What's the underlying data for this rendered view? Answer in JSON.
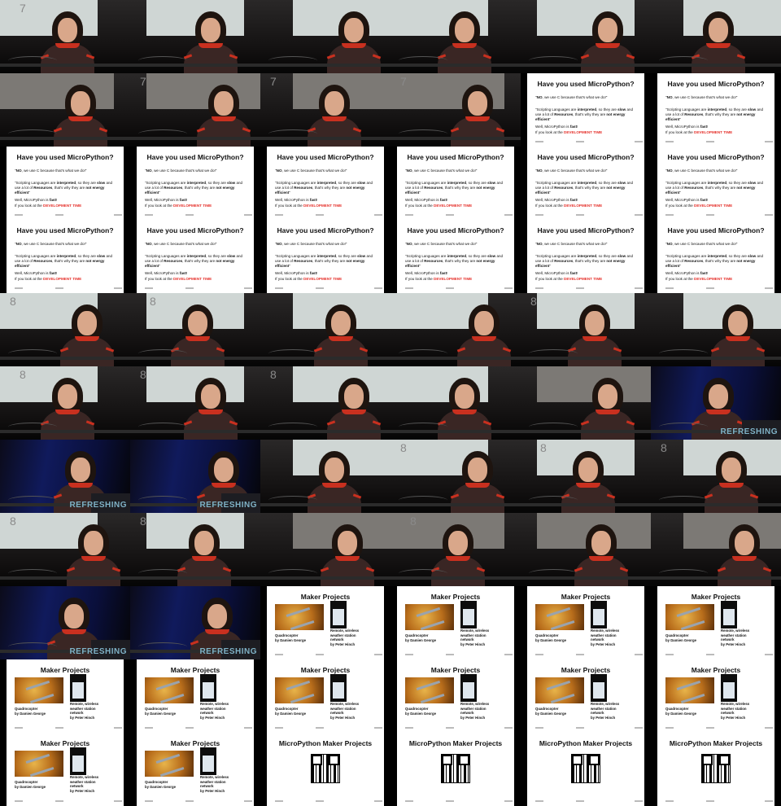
{
  "grid": {
    "columns": 6,
    "rows": 11
  },
  "frames": [
    {
      "kind": "talk",
      "screen": "light",
      "slide_number": "7"
    },
    {
      "kind": "talk",
      "screen": "light",
      "slide_number": ""
    },
    {
      "kind": "talk",
      "screen": "light",
      "slide_number": ""
    },
    {
      "kind": "talk",
      "screen": "light",
      "slide_number": ""
    },
    {
      "kind": "talk",
      "screen": "light",
      "slide_number": ""
    },
    {
      "kind": "talk",
      "screen": "light",
      "slide_number": ""
    },
    {
      "kind": "talk",
      "screen": "gray",
      "slide_number": ""
    },
    {
      "kind": "talk",
      "screen": "gray",
      "slide_number": "7"
    },
    {
      "kind": "talk",
      "screen": "gray",
      "slide_number": "7"
    },
    {
      "kind": "talk",
      "screen": "gray",
      "slide_number": "7"
    },
    {
      "kind": "slide-micropython"
    },
    {
      "kind": "slide-micropython"
    },
    {
      "kind": "slide-micropython"
    },
    {
      "kind": "slide-micropython"
    },
    {
      "kind": "slide-micropython"
    },
    {
      "kind": "slide-micropython"
    },
    {
      "kind": "slide-micropython"
    },
    {
      "kind": "slide-micropython"
    },
    {
      "kind": "slide-micropython"
    },
    {
      "kind": "slide-micropython"
    },
    {
      "kind": "slide-micropython"
    },
    {
      "kind": "slide-micropython"
    },
    {
      "kind": "slide-micropython"
    },
    {
      "kind": "slide-micropython"
    },
    {
      "kind": "talk",
      "screen": "light",
      "slide_number": "8"
    },
    {
      "kind": "talk",
      "screen": "light",
      "slide_number": "8"
    },
    {
      "kind": "talk",
      "screen": "light",
      "slide_number": ""
    },
    {
      "kind": "talk",
      "screen": "light",
      "slide_number": ""
    },
    {
      "kind": "talk",
      "screen": "light",
      "slide_number": "8"
    },
    {
      "kind": "talk",
      "screen": "light",
      "slide_number": ""
    },
    {
      "kind": "talk",
      "screen": "light",
      "slide_number": "8"
    },
    {
      "kind": "talk",
      "screen": "light",
      "slide_number": "8"
    },
    {
      "kind": "talk",
      "screen": "light",
      "slide_number": "8"
    },
    {
      "kind": "talk",
      "screen": "light",
      "slide_number": ""
    },
    {
      "kind": "talk",
      "screen": "gray",
      "slide_number": ""
    },
    {
      "kind": "talk",
      "screen": "blue",
      "slide_number": "",
      "brand": "REFRESHING"
    },
    {
      "kind": "talk",
      "screen": "blue",
      "slide_number": "",
      "brand": "REFRESHING"
    },
    {
      "kind": "talk",
      "screen": "blue",
      "slide_number": "",
      "brand": "REFRESHING"
    },
    {
      "kind": "talk",
      "screen": "light",
      "slide_number": ""
    },
    {
      "kind": "talk",
      "screen": "light",
      "slide_number": "8"
    },
    {
      "kind": "talk",
      "screen": "light",
      "slide_number": "8"
    },
    {
      "kind": "talk",
      "screen": "light",
      "slide_number": "8"
    },
    {
      "kind": "talk",
      "screen": "light",
      "slide_number": "8"
    },
    {
      "kind": "talk",
      "screen": "light",
      "slide_number": "8"
    },
    {
      "kind": "talk",
      "screen": "gray",
      "slide_number": ""
    },
    {
      "kind": "talk",
      "screen": "gray",
      "slide_number": "8"
    },
    {
      "kind": "talk",
      "screen": "gray",
      "slide_number": ""
    },
    {
      "kind": "talk",
      "screen": "gray",
      "slide_number": ""
    },
    {
      "kind": "talk",
      "screen": "blue",
      "slide_number": "",
      "brand": "REFRESHING"
    },
    {
      "kind": "talk",
      "screen": "blue",
      "slide_number": "",
      "brand": "REFRESHING"
    },
    {
      "kind": "slide-maker"
    },
    {
      "kind": "slide-maker"
    },
    {
      "kind": "slide-maker"
    },
    {
      "kind": "slide-maker"
    },
    {
      "kind": "slide-maker"
    },
    {
      "kind": "slide-maker"
    },
    {
      "kind": "slide-maker"
    },
    {
      "kind": "slide-maker"
    },
    {
      "kind": "slide-maker"
    },
    {
      "kind": "slide-maker"
    },
    {
      "kind": "slide-maker"
    },
    {
      "kind": "slide-maker"
    },
    {
      "kind": "slide-qr"
    },
    {
      "kind": "slide-qr"
    },
    {
      "kind": "slide-qr"
    },
    {
      "kind": "slide-qr"
    }
  ],
  "slides": {
    "micropython": {
      "title": "Have you used MicroPython?",
      "answer_bold": "NO",
      "answer_rest": ", we use C because that's what we do!\"",
      "answer_open": "\"",
      "quote_1": "\"Scripting Languages are ",
      "quote_interpreted": "interpreted",
      "quote_2": ", so they are ",
      "quote_slow": "slow",
      "quote_3": " and use a lot of ",
      "quote_resources": "Resources",
      "quote_4": ", that's why they are ",
      "quote_energy": "not energy efficient",
      "quote_5": "\"",
      "line_fast_a": "Well, MicroPython is ",
      "line_fast_b": "fast",
      "line_fast_c": "!",
      "line_dev_a": "If you look at the ",
      "line_dev_b": "DEVELOPMENT TIME"
    },
    "maker": {
      "title": "Maker Projects",
      "caption_left_1": "Quadrocopter",
      "caption_left_2": "by Damien George",
      "caption_right_1": "Remote, wireless",
      "caption_right_2": "weather station",
      "caption_right_3": "network",
      "caption_right_4": "by Peter Hinch"
    },
    "qr": {
      "title": "MicroPython Maker Projects"
    }
  },
  "colors": {
    "accent_red": "#e5312b",
    "shirt_trim": "#c9301f",
    "stage_blue": "#101a5c",
    "brand_text": "#7fb2c6"
  }
}
